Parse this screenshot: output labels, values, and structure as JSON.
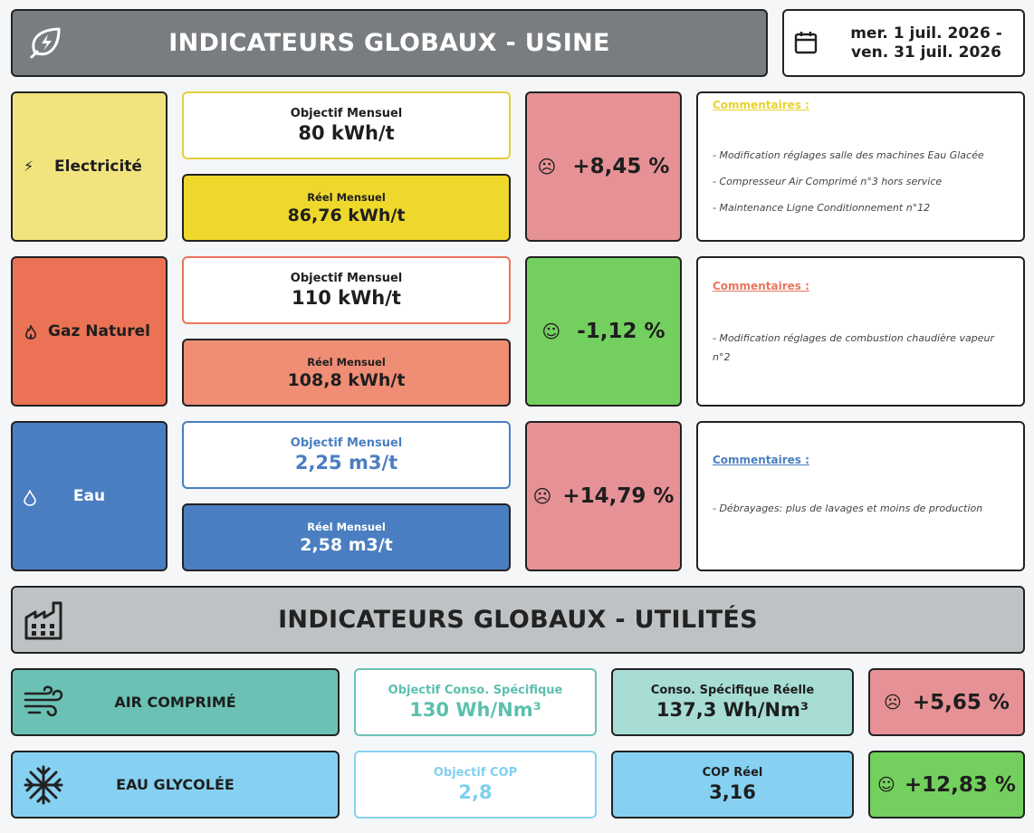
{
  "header": {
    "title": "INDICATEURS GLOBAUX - USINE",
    "logo_icon": "leaf-lightning-icon",
    "date_line1": "mer. 1 juil. 2026 -",
    "date_line2": "ven. 31 juil. 2026",
    "date_icon": "calendar-icon"
  },
  "utilities_header": {
    "title": "INDICATEURS GLOBAUX - UTILITÉS",
    "icon": "factory-icon"
  },
  "colors": {
    "elec": "#f1e47d",
    "elec_real": "#eed82c",
    "gas": "#ec7255",
    "gas_real": "#ef8e75",
    "water": "#4a7ec1",
    "bad": "#e69196",
    "good": "#74d05e",
    "air": "#6bc2b4",
    "air_real": "#a7ddd5",
    "glycol": "#86d1f1",
    "glycol_text": "#7fd0f0",
    "header": "#7a7d80",
    "util_header": "#bfc2c4"
  },
  "energies": [
    {
      "name": "Electricité",
      "icon": "lightning-icon",
      "objective_label": "Objectif Mensuel",
      "objective_value": "80 kWh/t",
      "real_label": "Réel Mensuel",
      "real_value": "86,76 kWh/t",
      "delta": "+8,45 %",
      "mood": "sad-face-icon",
      "mood_glyph": "☹",
      "comments_title": "Commentaires :",
      "comments": [
        "- Modification réglages salle des machines Eau Glacée",
        "- Compresseur Air Comprimé n°3 hors service",
        "- Maintenance Ligne Conditionnement n°12"
      ]
    },
    {
      "name": "Gaz Naturel",
      "icon": "flame-icon",
      "objective_label": "Objectif Mensuel",
      "objective_value": "110 kWh/t",
      "real_label": "Réel Mensuel",
      "real_value": "108,8 kWh/t",
      "delta": "-1,12 %",
      "mood": "happy-face-icon",
      "mood_glyph": "☺",
      "comments_title": "Commentaires :",
      "comments": [
        "- Modification réglages de combustion chaudière vapeur n°2"
      ]
    },
    {
      "name": "Eau",
      "icon": "water-drop-icon",
      "objective_label": "Objectif Mensuel",
      "objective_value": "2,25 m3/t",
      "real_label": "Réel Mensuel",
      "real_value": "2,58 m3/t",
      "delta": "+14,79 %",
      "mood": "sad-face-icon",
      "mood_glyph": "☹",
      "comments_title": "Commentaires :",
      "comments": [
        "- Débrayages: plus de lavages et moins de production"
      ]
    }
  ],
  "utilities": [
    {
      "name": "AIR COMPRIMÉ",
      "icon": "wind-icon",
      "objective_label": "Objectif Conso. Spécifique",
      "objective_value": "130 Wh/Nm³",
      "real_label": "Conso. Spécifique Réelle",
      "real_value": "137,3 Wh/Nm³",
      "delta": "+5,65 %",
      "mood": "sad-face-icon",
      "mood_glyph": "☹"
    },
    {
      "name": "EAU GLYCOLÉE",
      "icon": "snowflake-icon",
      "objective_label": "Objectif COP",
      "objective_value": "2,8",
      "real_label": "COP Réel",
      "real_value": "3,16",
      "delta": "+12,83 %",
      "mood": "happy-face-icon",
      "mood_glyph": "☺"
    }
  ]
}
